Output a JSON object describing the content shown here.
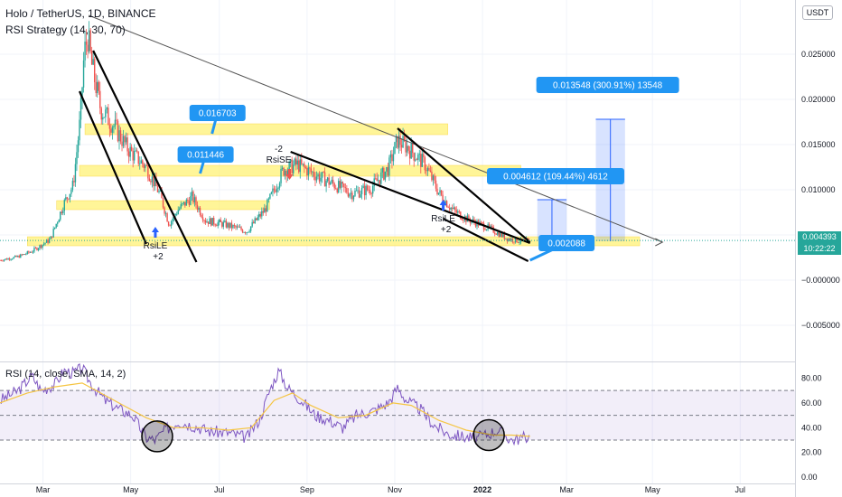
{
  "header": {
    "symbol_title": "Holo / TetherUS, 1D, BINANCE",
    "strategy_label": "RSI Strategy (14, 30, 70)",
    "rsi_label": "RSI (14, close, SMA, 14, 2)",
    "currency_button": "USDT"
  },
  "price_panel": {
    "last_price": "0.004393",
    "countdown": "10:22:22"
  },
  "chart_data": [
    {
      "type": "candlestick",
      "title": "Holo / TetherUS, 1D, BINANCE",
      "x_ticks": [
        "Mar",
        "May",
        "Jul",
        "Sep",
        "Nov",
        "2022",
        "Mar",
        "May",
        "Jul"
      ],
      "y_ticks": [
        0.025,
        0.02,
        0.015,
        0.01,
        0.005,
        0,
        -0.005
      ],
      "y_tick_labels": [
        "0.025000",
        "0.020000",
        "0.015000",
        "0.010000",
        "0.005000",
        "−0.000000",
        "−0.005000"
      ],
      "ylim": [
        -0.009,
        0.031
      ],
      "x_range_days": [
        0,
        870
      ],
      "price_series": [
        [
          0,
          0.0022
        ],
        [
          20,
          0.0026
        ],
        [
          35,
          0.0032
        ],
        [
          55,
          0.0045
        ],
        [
          70,
          0.0085
        ],
        [
          80,
          0.0105
        ],
        [
          88,
          0.018
        ],
        [
          92,
          0.025
        ],
        [
          96,
          0.027
        ],
        [
          100,
          0.024
        ],
        [
          110,
          0.019
        ],
        [
          125,
          0.017
        ],
        [
          140,
          0.0145
        ],
        [
          160,
          0.0125
        ],
        [
          175,
          0.0095
        ],
        [
          185,
          0.0062
        ],
        [
          195,
          0.0078
        ],
        [
          210,
          0.0092
        ],
        [
          225,
          0.0066
        ],
        [
          245,
          0.0062
        ],
        [
          270,
          0.0054
        ],
        [
          290,
          0.0078
        ],
        [
          310,
          0.0122
        ],
        [
          325,
          0.0128
        ],
        [
          345,
          0.0117
        ],
        [
          365,
          0.0106
        ],
        [
          385,
          0.0096
        ],
        [
          405,
          0.0101
        ],
        [
          425,
          0.0124
        ],
        [
          435,
          0.0155
        ],
        [
          445,
          0.0148
        ],
        [
          465,
          0.0128
        ],
        [
          480,
          0.0097
        ],
        [
          495,
          0.0078
        ],
        [
          510,
          0.0068
        ],
        [
          525,
          0.0062
        ],
        [
          540,
          0.0055
        ],
        [
          555,
          0.0046
        ],
        [
          570,
          0.0043
        ],
        [
          580,
          0.0044
        ]
      ],
      "horizontal_zones": [
        {
          "from_day": 30,
          "to_day": 700,
          "low": 0.0038,
          "high": 0.0048
        },
        {
          "from_day": 62,
          "to_day": 295,
          "low": 0.0078,
          "high": 0.0088
        },
        {
          "from_day": 87,
          "to_day": 570,
          "low": 0.0115,
          "high": 0.0127
        },
        {
          "from_day": 93,
          "to_day": 490,
          "low": 0.0161,
          "high": 0.0173
        }
      ],
      "trend_lines": [
        {
          "from": [
            97,
            0.0293
          ],
          "to": [
            725,
            0.0042
          ]
        },
        {
          "from": [
            87,
            0.0209
          ],
          "to": [
            160,
            0.004
          ]
        },
        {
          "from": [
            102,
            0.0254
          ],
          "to": [
            215,
            0.002
          ]
        },
        {
          "from": [
            318,
            0.0142
          ],
          "to": [
            580,
            0.0041
          ]
        },
        {
          "from": [
            435,
            0.0168
          ],
          "to": [
            580,
            0.0042
          ]
        },
        {
          "from": [
            485,
            0.0068
          ],
          "to": [
            578,
            0.0021
          ]
        }
      ],
      "annotations": [
        {
          "text": "0.016703",
          "day": 238,
          "price": 0.0185,
          "target_day": 232,
          "target_price": 0.0162
        },
        {
          "text": "0.011446",
          "day": 225,
          "price": 0.0139,
          "target_day": 219,
          "target_price": 0.0118
        },
        {
          "text": "0.013548 (300.91%) 13548",
          "day": 665,
          "price": 0.0216
        },
        {
          "text": "0.004612 (109.44%) 4612",
          "day": 608,
          "price": 0.0115
        },
        {
          "text": "0.002088",
          "day": 620,
          "price": 0.0041,
          "target_day": 580,
          "target_price": 0.0022
        }
      ],
      "measure_boxes": [
        {
          "from_day": 588,
          "to_day": 620,
          "low": 0.0043,
          "high": 0.0089
        },
        {
          "from_day": 652,
          "to_day": 684,
          "low": 0.0043,
          "high": 0.0178
        }
      ],
      "signals": [
        {
          "label": "RsiLE",
          "qty": "+2",
          "day": 170,
          "price": 0.0045,
          "direction": "long"
        },
        {
          "label": "RsiSE",
          "qty": "-2",
          "day": 305,
          "price": 0.0125,
          "direction": "short"
        },
        {
          "label": "RsiLE",
          "qty": "+2",
          "day": 485,
          "price": 0.0075,
          "direction": "long"
        }
      ],
      "last_price": 0.004393
    },
    {
      "type": "line",
      "title": "RSI (14, close, SMA, 14, 2)",
      "y_ticks": [
        80,
        60,
        40,
        20,
        0
      ],
      "y_tick_labels": [
        "80.00",
        "60.00",
        "40.00",
        "20.00",
        "0.00"
      ],
      "ylim": [
        -5,
        92
      ],
      "bands": {
        "upper": 70,
        "middle": 50,
        "lower": 30
      },
      "rsi_series": [
        [
          0,
          62
        ],
        [
          20,
          70
        ],
        [
          35,
          82
        ],
        [
          45,
          70
        ],
        [
          60,
          75
        ],
        [
          70,
          86
        ],
        [
          80,
          84
        ],
        [
          90,
          88
        ],
        [
          100,
          75
        ],
        [
          115,
          62
        ],
        [
          130,
          55
        ],
        [
          145,
          50
        ],
        [
          160,
          32
        ],
        [
          170,
          30
        ],
        [
          180,
          38
        ],
        [
          195,
          45
        ],
        [
          210,
          42
        ],
        [
          230,
          37
        ],
        [
          250,
          36
        ],
        [
          270,
          32
        ],
        [
          285,
          48
        ],
        [
          295,
          70
        ],
        [
          305,
          86
        ],
        [
          315,
          72
        ],
        [
          330,
          62
        ],
        [
          345,
          50
        ],
        [
          360,
          46
        ],
        [
          375,
          40
        ],
        [
          390,
          50
        ],
        [
          410,
          54
        ],
        [
          425,
          60
        ],
        [
          435,
          72
        ],
        [
          445,
          62
        ],
        [
          460,
          55
        ],
        [
          475,
          42
        ],
        [
          490,
          35
        ],
        [
          505,
          33
        ],
        [
          520,
          31
        ],
        [
          530,
          34
        ],
        [
          545,
          38
        ],
        [
          560,
          30
        ],
        [
          580,
          33
        ]
      ],
      "rsi_ma_series": [
        [
          0,
          60
        ],
        [
          30,
          68
        ],
        [
          60,
          73
        ],
        [
          90,
          76
        ],
        [
          110,
          68
        ],
        [
          130,
          60
        ],
        [
          160,
          48
        ],
        [
          190,
          40
        ],
        [
          220,
          40
        ],
        [
          250,
          38
        ],
        [
          275,
          40
        ],
        [
          300,
          62
        ],
        [
          320,
          68
        ],
        [
          340,
          58
        ],
        [
          370,
          48
        ],
        [
          400,
          50
        ],
        [
          430,
          60
        ],
        [
          450,
          58
        ],
        [
          480,
          46
        ],
        [
          510,
          38
        ],
        [
          540,
          34
        ],
        [
          560,
          34
        ],
        [
          580,
          33
        ]
      ],
      "highlight_circles": [
        {
          "day": 172,
          "value": 33
        },
        {
          "day": 535,
          "value": 34
        }
      ]
    }
  ]
}
